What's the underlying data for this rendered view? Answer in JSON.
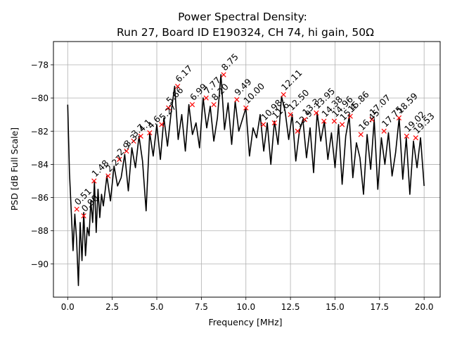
{
  "chart_data": {
    "type": "line",
    "title_line1": "Power Spectral Density:",
    "title_line2": "Run 27, Board ID E190324, CH 74, hi gain, 50Ω",
    "xlabel": "Frequency [MHz]",
    "ylabel": "PSD [dB Full Scale]",
    "xlim": [
      -0.8,
      20.9
    ],
    "ylim": [
      -92.0,
      -76.6
    ],
    "grid": true,
    "line_color": "#000000",
    "marker_color": "#ff0000",
    "x_ticks": [
      {
        "value": 0.0,
        "label": "0.0"
      },
      {
        "value": 2.5,
        "label": "2.5"
      },
      {
        "value": 5.0,
        "label": "5.0"
      },
      {
        "value": 7.5,
        "label": "7.5"
      },
      {
        "value": 10.0,
        "label": "10.0"
      },
      {
        "value": 12.5,
        "label": "12.5"
      },
      {
        "value": 15.0,
        "label": "15.0"
      },
      {
        "value": 17.5,
        "label": "17.5"
      },
      {
        "value": 20.0,
        "label": "20.0"
      }
    ],
    "y_ticks": [
      {
        "value": -78,
        "label": "−78"
      },
      {
        "value": -80,
        "label": "−80"
      },
      {
        "value": -82,
        "label": "−82"
      },
      {
        "value": -84,
        "label": "−84"
      },
      {
        "value": -86,
        "label": "−86"
      },
      {
        "value": -88,
        "label": "−88"
      },
      {
        "value": -90,
        "label": "−90"
      }
    ],
    "series": [
      {
        "x": [
          0.0,
          0.1,
          0.2,
          0.3,
          0.4,
          0.5,
          0.6,
          0.7,
          0.8,
          0.9,
          1.0,
          1.1,
          1.2,
          1.3,
          1.4,
          1.5,
          1.6,
          1.7,
          1.8,
          1.9,
          2.0,
          2.2,
          2.4,
          2.6,
          2.8,
          3.0,
          3.2,
          3.4,
          3.6,
          3.8,
          4.0,
          4.2,
          4.4,
          4.6,
          4.8,
          5.0,
          5.2,
          5.4,
          5.6,
          5.8,
          6.0,
          6.2,
          6.4,
          6.6,
          6.8,
          7.0,
          7.2,
          7.4,
          7.6,
          7.8,
          8.0,
          8.2,
          8.4,
          8.6,
          8.8,
          9.0,
          9.2,
          9.4,
          9.6,
          9.8,
          10.0,
          10.2,
          10.4,
          10.6,
          10.8,
          11.0,
          11.2,
          11.4,
          11.6,
          11.8,
          12.0,
          12.2,
          12.4,
          12.6,
          12.8,
          13.0,
          13.2,
          13.4,
          13.6,
          13.8,
          14.0,
          14.2,
          14.4,
          14.6,
          14.8,
          15.0,
          15.2,
          15.4,
          15.6,
          15.8,
          16.0,
          16.2,
          16.4,
          16.6,
          16.8,
          17.0,
          17.2,
          17.4,
          17.6,
          17.8,
          18.0,
          18.2,
          18.4,
          18.6,
          18.8,
          19.0,
          19.2,
          19.4,
          19.6,
          19.8,
          20.0
        ],
        "y": [
          -80.4,
          -84.5,
          -86.8,
          -89.2,
          -87.0,
          -88.5,
          -91.3,
          -87.5,
          -89.8,
          -86.9,
          -89.5,
          -87.8,
          -88.3,
          -86.2,
          -87.5,
          -85.0,
          -88.1,
          -85.5,
          -87.2,
          -85.8,
          -86.5,
          -84.7,
          -86.2,
          -84.1,
          -85.3,
          -84.8,
          -83.4,
          -85.6,
          -83.0,
          -84.2,
          -82.3,
          -83.8,
          -86.8,
          -82.1,
          -83.5,
          -81.6,
          -83.7,
          -81.2,
          -82.9,
          -80.9,
          -79.3,
          -82.5,
          -81.0,
          -83.2,
          -80.4,
          -82.2,
          -81.5,
          -83.0,
          -80.0,
          -81.8,
          -80.5,
          -82.6,
          -81.2,
          -78.6,
          -81.9,
          -80.3,
          -82.8,
          -80.2,
          -82.0,
          -81.3,
          -80.6,
          -83.5,
          -81.8,
          -82.4,
          -81.0,
          -83.2,
          -81.5,
          -84.0,
          -81.4,
          -82.8,
          -79.9,
          -80.8,
          -82.5,
          -81.0,
          -83.8,
          -82.0,
          -81.3,
          -83.6,
          -81.8,
          -84.5,
          -80.9,
          -82.6,
          -81.4,
          -83.7,
          -82.1,
          -84.2,
          -81.6,
          -85.2,
          -82.3,
          -81.1,
          -84.8,
          -82.7,
          -83.6,
          -85.8,
          -82.2,
          -84.3,
          -81.3,
          -85.5,
          -82.4,
          -84.0,
          -82.1,
          -84.7,
          -83.3,
          -81.2,
          -84.9,
          -82.4,
          -85.8,
          -82.6,
          -84.2,
          -82.4,
          -85.3
        ]
      }
    ],
    "markers": [
      {
        "x": 0.51,
        "y": -86.7,
        "label": "0.51"
      },
      {
        "x": 0.9,
        "y": -87.1,
        "label": "0.90"
      },
      {
        "x": 1.48,
        "y": -85.0,
        "label": "1.48"
      },
      {
        "x": 2.27,
        "y": -84.7,
        "label": "2.27"
      },
      {
        "x": 2.9,
        "y": -83.7,
        "label": "2.9"
      },
      {
        "x": 3.3,
        "y": -83.2,
        "label": "3.3"
      },
      {
        "x": 3.7,
        "y": -82.6,
        "label": "3.7"
      },
      {
        "x": 4.1,
        "y": -82.3,
        "label": "4.1"
      },
      {
        "x": 4.6,
        "y": -82.1,
        "label": "4.6"
      },
      {
        "x": 5.27,
        "y": -81.6,
        "label": "5.27"
      },
      {
        "x": 5.66,
        "y": -80.6,
        "label": "5.66"
      },
      {
        "x": 6.17,
        "y": -79.3,
        "label": "6.17"
      },
      {
        "x": 6.99,
        "y": -80.4,
        "label": "6.99"
      },
      {
        "x": 7.77,
        "y": -80.0,
        "label": "7.77"
      },
      {
        "x": 8.2,
        "y": -80.4,
        "label": "8.20"
      },
      {
        "x": 8.75,
        "y": -78.6,
        "label": "8.75"
      },
      {
        "x": 9.49,
        "y": -80.1,
        "label": "9.49"
      },
      {
        "x": 10.0,
        "y": -80.6,
        "label": "10.00"
      },
      {
        "x": 10.98,
        "y": -81.6,
        "label": "10.98"
      },
      {
        "x": 11.6,
        "y": -81.5,
        "label": "11.6"
      },
      {
        "x": 12.11,
        "y": -79.8,
        "label": "12.11"
      },
      {
        "x": 12.5,
        "y": -81.0,
        "label": "12.50"
      },
      {
        "x": 12.9,
        "y": -82.0,
        "label": "12.9"
      },
      {
        "x": 13.3,
        "y": -81.3,
        "label": "13.3"
      },
      {
        "x": 13.95,
        "y": -80.9,
        "label": "13.95"
      },
      {
        "x": 14.38,
        "y": -81.4,
        "label": "14.38"
      },
      {
        "x": 14.96,
        "y": -81.4,
        "label": "14.96"
      },
      {
        "x": 15.4,
        "y": -81.6,
        "label": "15.4"
      },
      {
        "x": 15.86,
        "y": -81.1,
        "label": "15.86"
      },
      {
        "x": 16.45,
        "y": -82.2,
        "label": "16.45"
      },
      {
        "x": 17.07,
        "y": -81.3,
        "label": "17.07"
      },
      {
        "x": 17.75,
        "y": -82.0,
        "label": "17.75"
      },
      {
        "x": 18.59,
        "y": -81.2,
        "label": "18.59"
      },
      {
        "x": 19.02,
        "y": -82.3,
        "label": "19.02"
      },
      {
        "x": 19.53,
        "y": -82.4,
        "label": "19.53"
      }
    ]
  }
}
